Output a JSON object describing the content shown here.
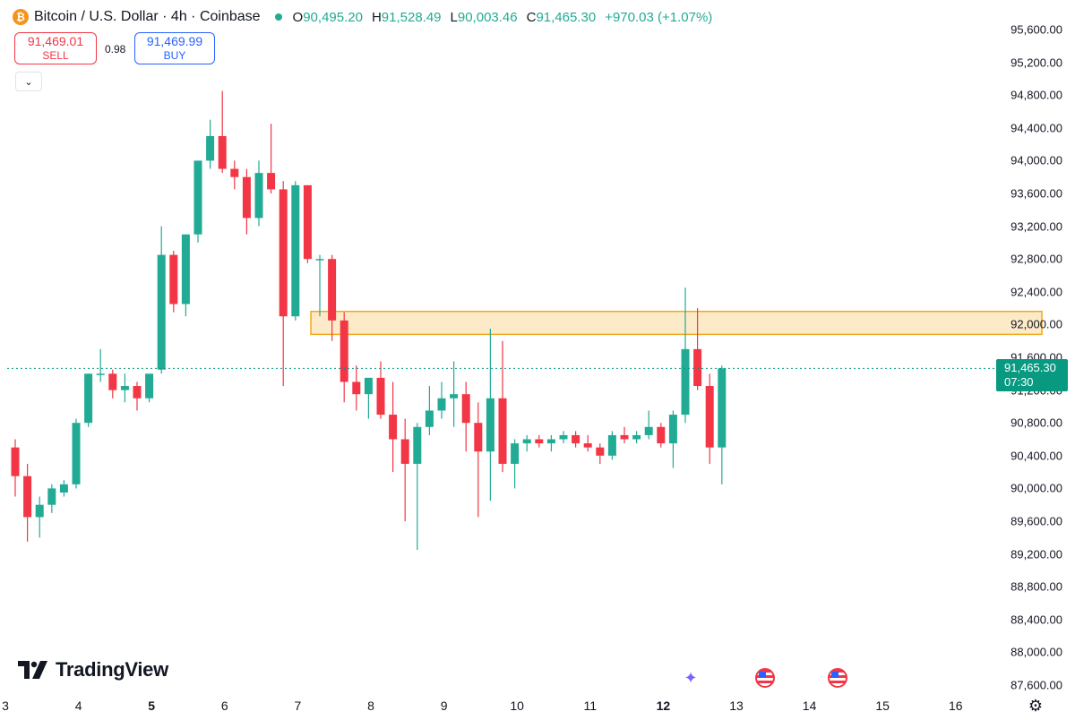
{
  "header": {
    "symbol": "Bitcoin / U.S. Dollar · 4h · Coinbase",
    "open_label": "O",
    "open": "90,495.20",
    "high_label": "H",
    "high": "91,528.49",
    "low_label": "L",
    "low": "90,003.46",
    "close_label": "C",
    "close": "91,465.30",
    "change": "+970.03 (+1.07%)"
  },
  "trade": {
    "sell_price": "91,469.01",
    "sell_label": "SELL",
    "spread": "0.98",
    "buy_price": "91,469.99",
    "buy_label": "BUY"
  },
  "last_price": {
    "price": "91,465.30",
    "countdown": "07:30"
  },
  "branding": {
    "logo_text": "TradingView"
  },
  "colors": {
    "up": "#22ab94",
    "down": "#f23645",
    "zone_fill": "#fce3b6",
    "zone_border": "#f0a81c",
    "price_tag": "#089981"
  },
  "icons": {
    "symbol": "bitcoin-icon",
    "events": [
      "ai-spark-icon",
      "us-flag-icon",
      "us-flag-icon"
    ],
    "settings": "gear-icon"
  },
  "chart_data": {
    "type": "candlestick",
    "y_ticks": [
      "95,600.00",
      "95,200.00",
      "94,800.00",
      "94,400.00",
      "94,000.00",
      "93,600.00",
      "93,200.00",
      "92,800.00",
      "92,400.00",
      "92,000.00",
      "91,600.00",
      "91,200.00",
      "90,800.00",
      "90,400.00",
      "90,000.00",
      "89,600.00",
      "89,200.00",
      "88,800.00",
      "88,400.00",
      "88,000.00",
      "87,600.00"
    ],
    "y_tick_values": [
      95600,
      95200,
      94800,
      94400,
      94000,
      93600,
      93200,
      92800,
      92400,
      92000,
      91600,
      91200,
      90800,
      90400,
      90000,
      89600,
      89200,
      88800,
      88400,
      88000,
      87600
    ],
    "x_ticks": [
      {
        "label": "3",
        "bold": false
      },
      {
        "label": "4",
        "bold": false
      },
      {
        "label": "5",
        "bold": true
      },
      {
        "label": "6",
        "bold": false
      },
      {
        "label": "7",
        "bold": false
      },
      {
        "label": "8",
        "bold": false
      },
      {
        "label": "9",
        "bold": false
      },
      {
        "label": "10",
        "bold": false
      },
      {
        "label": "11",
        "bold": false
      },
      {
        "label": "12",
        "bold": true
      },
      {
        "label": "13",
        "bold": false
      },
      {
        "label": "14",
        "bold": false
      },
      {
        "label": "15",
        "bold": false
      },
      {
        "label": "16",
        "bold": false
      }
    ],
    "x_tick_start_index": -1,
    "candles_per_day": 6,
    "last_price_value": 91465.3,
    "resistance_zone": {
      "low": 91880,
      "high": 92160,
      "from_index": 25,
      "to_index": 85
    },
    "candles": [
      {
        "o": 90500,
        "h": 90600,
        "l": 89900,
        "c": 90150
      },
      {
        "o": 90150,
        "h": 90300,
        "l": 89350,
        "c": 89650
      },
      {
        "o": 89650,
        "h": 89900,
        "l": 89400,
        "c": 89800
      },
      {
        "o": 89800,
        "h": 90050,
        "l": 89700,
        "c": 90000
      },
      {
        "o": 89950,
        "h": 90100,
        "l": 89900,
        "c": 90050
      },
      {
        "o": 90050,
        "h": 90850,
        "l": 90000,
        "c": 90800
      },
      {
        "o": 90800,
        "h": 91400,
        "l": 90750,
        "c": 91400
      },
      {
        "o": 91400,
        "h": 91700,
        "l": 91300,
        "c": 91400
      },
      {
        "o": 91400,
        "h": 91450,
        "l": 91100,
        "c": 91200
      },
      {
        "o": 91200,
        "h": 91400,
        "l": 91050,
        "c": 91250
      },
      {
        "o": 91250,
        "h": 91300,
        "l": 90950,
        "c": 91100
      },
      {
        "o": 91100,
        "h": 91400,
        "l": 91050,
        "c": 91400
      },
      {
        "o": 91450,
        "h": 93200,
        "l": 91400,
        "c": 92850
      },
      {
        "o": 92850,
        "h": 92900,
        "l": 92150,
        "c": 92250
      },
      {
        "o": 92250,
        "h": 93100,
        "l": 92100,
        "c": 93100
      },
      {
        "o": 93100,
        "h": 94000,
        "l": 93000,
        "c": 94000
      },
      {
        "o": 94000,
        "h": 94500,
        "l": 93900,
        "c": 94300
      },
      {
        "o": 94300,
        "h": 94850,
        "l": 93850,
        "c": 93900
      },
      {
        "o": 93900,
        "h": 94000,
        "l": 93650,
        "c": 93800
      },
      {
        "o": 93800,
        "h": 93900,
        "l": 93100,
        "c": 93300
      },
      {
        "o": 93300,
        "h": 94000,
        "l": 93200,
        "c": 93850
      },
      {
        "o": 93850,
        "h": 94450,
        "l": 93600,
        "c": 93650
      },
      {
        "o": 93650,
        "h": 93750,
        "l": 91250,
        "c": 92100
      },
      {
        "o": 92100,
        "h": 93750,
        "l": 92050,
        "c": 93700
      },
      {
        "o": 93700,
        "h": 93700,
        "l": 92750,
        "c": 92800
      },
      {
        "o": 92800,
        "h": 92850,
        "l": 92100,
        "c": 92800
      },
      {
        "o": 92800,
        "h": 92850,
        "l": 91800,
        "c": 92050
      },
      {
        "o": 92050,
        "h": 92150,
        "l": 91050,
        "c": 91300
      },
      {
        "o": 91300,
        "h": 91500,
        "l": 90950,
        "c": 91150
      },
      {
        "o": 91150,
        "h": 91350,
        "l": 90850,
        "c": 91350
      },
      {
        "o": 91350,
        "h": 91550,
        "l": 90850,
        "c": 90900
      },
      {
        "o": 90900,
        "h": 91300,
        "l": 90200,
        "c": 90600
      },
      {
        "o": 90600,
        "h": 90850,
        "l": 89600,
        "c": 90300
      },
      {
        "o": 90300,
        "h": 90800,
        "l": 89250,
        "c": 90750
      },
      {
        "o": 90750,
        "h": 91250,
        "l": 90650,
        "c": 90950
      },
      {
        "o": 90950,
        "h": 91300,
        "l": 90850,
        "c": 91100
      },
      {
        "o": 91100,
        "h": 91550,
        "l": 90750,
        "c": 91150
      },
      {
        "o": 91150,
        "h": 91300,
        "l": 90450,
        "c": 90800
      },
      {
        "o": 90800,
        "h": 91050,
        "l": 89650,
        "c": 90450
      },
      {
        "o": 90450,
        "h": 91950,
        "l": 89850,
        "c": 91100
      },
      {
        "o": 91100,
        "h": 91800,
        "l": 90200,
        "c": 90300
      },
      {
        "o": 90300,
        "h": 90600,
        "l": 90000,
        "c": 90550
      },
      {
        "o": 90550,
        "h": 90650,
        "l": 90450,
        "c": 90600
      },
      {
        "o": 90600,
        "h": 90650,
        "l": 90500,
        "c": 90550
      },
      {
        "o": 90550,
        "h": 90650,
        "l": 90450,
        "c": 90600
      },
      {
        "o": 90600,
        "h": 90700,
        "l": 90550,
        "c": 90650
      },
      {
        "o": 90650,
        "h": 90700,
        "l": 90500,
        "c": 90550
      },
      {
        "o": 90550,
        "h": 90650,
        "l": 90450,
        "c": 90500
      },
      {
        "o": 90500,
        "h": 90550,
        "l": 90300,
        "c": 90400
      },
      {
        "o": 90400,
        "h": 90700,
        "l": 90350,
        "c": 90650
      },
      {
        "o": 90650,
        "h": 90750,
        "l": 90550,
        "c": 90600
      },
      {
        "o": 90600,
        "h": 90700,
        "l": 90550,
        "c": 90650
      },
      {
        "o": 90650,
        "h": 90950,
        "l": 90600,
        "c": 90750
      },
      {
        "o": 90750,
        "h": 90800,
        "l": 90500,
        "c": 90550
      },
      {
        "o": 90550,
        "h": 90950,
        "l": 90250,
        "c": 90900
      },
      {
        "o": 90900,
        "h": 92450,
        "l": 90800,
        "c": 91700
      },
      {
        "o": 91700,
        "h": 92200,
        "l": 91200,
        "c": 91250
      },
      {
        "o": 91250,
        "h": 91400,
        "l": 90300,
        "c": 90500
      },
      {
        "o": 90500,
        "h": 91500,
        "l": 90050,
        "c": 91465.3
      }
    ]
  }
}
